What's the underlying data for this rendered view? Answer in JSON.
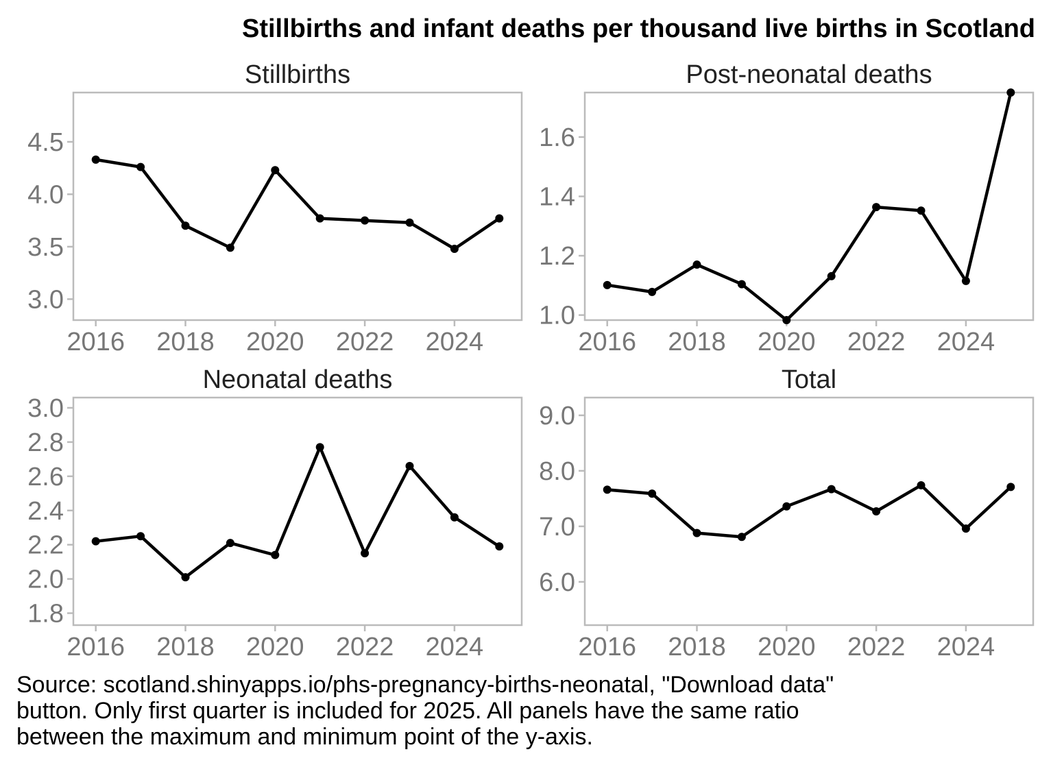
{
  "title": "Stillbirths and infant deaths per thousand live births in Scotland",
  "caption": [
    "Source: scotland.shinyapps.io/phs-pregnancy-births-neonatal, \"Download data\"",
    "button. Only first quarter is included for 2025. All panels have the same ratio",
    "between the maximum and minimum point of the y-axis."
  ],
  "colors": {
    "line": "#000000",
    "frame": "#bbbbbb",
    "tick_text": "#777777",
    "title_text": "#222222"
  },
  "chart_data": [
    {
      "type": "line",
      "title": "Stillbirths",
      "x": [
        2016,
        2017,
        2018,
        2019,
        2020,
        2021,
        2022,
        2023,
        2024,
        2025
      ],
      "values": [
        4.33,
        4.26,
        3.7,
        3.49,
        4.23,
        3.77,
        3.75,
        3.73,
        3.48,
        3.77
      ],
      "xlim": [
        2015.5,
        2025.5
      ],
      "ylim": [
        2.8,
        4.97
      ],
      "xticks": [
        2016,
        2018,
        2020,
        2022,
        2024
      ],
      "yticks": [
        3.0,
        3.5,
        4.0,
        4.5
      ],
      "ytick_labels": [
        "3.0",
        "3.5",
        "4.0",
        "4.5"
      ],
      "grid": false
    },
    {
      "type": "line",
      "title": "Post-neonatal deaths",
      "x": [
        2016,
        2017,
        2018,
        2019,
        2020,
        2021,
        2022,
        2023,
        2024,
        2025
      ],
      "values": [
        1.101,
        1.078,
        1.17,
        1.104,
        0.983,
        1.131,
        1.364,
        1.352,
        1.115,
        1.75
      ],
      "xlim": [
        2015.5,
        2025.5
      ],
      "ylim": [
        0.983,
        1.75
      ],
      "xticks": [
        2016,
        2018,
        2020,
        2022,
        2024
      ],
      "yticks": [
        1.0,
        1.2,
        1.4,
        1.6
      ],
      "ytick_labels": [
        "1.0",
        "1.2",
        "1.4",
        "1.6"
      ],
      "grid": false
    },
    {
      "type": "line",
      "title": "Neonatal deaths",
      "x": [
        2016,
        2017,
        2018,
        2019,
        2020,
        2021,
        2022,
        2023,
        2024,
        2025
      ],
      "values": [
        2.22,
        2.25,
        2.01,
        2.21,
        2.14,
        2.77,
        2.15,
        2.66,
        2.36,
        2.19
      ],
      "xlim": [
        2015.5,
        2025.5
      ],
      "ylim": [
        1.73,
        3.06
      ],
      "xticks": [
        2016,
        2018,
        2020,
        2022,
        2024
      ],
      "yticks": [
        1.8,
        2.0,
        2.2,
        2.4,
        2.6,
        2.8,
        3.0
      ],
      "ytick_labels": [
        "1.8",
        "2.0",
        "2.2",
        "2.4",
        "2.6",
        "2.8",
        "3.0"
      ],
      "grid": false
    },
    {
      "type": "line",
      "title": "Total",
      "x": [
        2016,
        2017,
        2018,
        2019,
        2020,
        2021,
        2022,
        2023,
        2024,
        2025
      ],
      "values": [
        7.66,
        7.59,
        6.88,
        6.81,
        7.36,
        7.67,
        7.27,
        7.74,
        6.96,
        7.71
      ],
      "xlim": [
        2015.5,
        2025.5
      ],
      "ylim": [
        5.22,
        9.32
      ],
      "xticks": [
        2016,
        2018,
        2020,
        2022,
        2024
      ],
      "yticks": [
        6.0,
        7.0,
        8.0,
        9.0
      ],
      "ytick_labels": [
        "6.0",
        "7.0",
        "8.0",
        "9.0"
      ],
      "grid": false
    }
  ]
}
